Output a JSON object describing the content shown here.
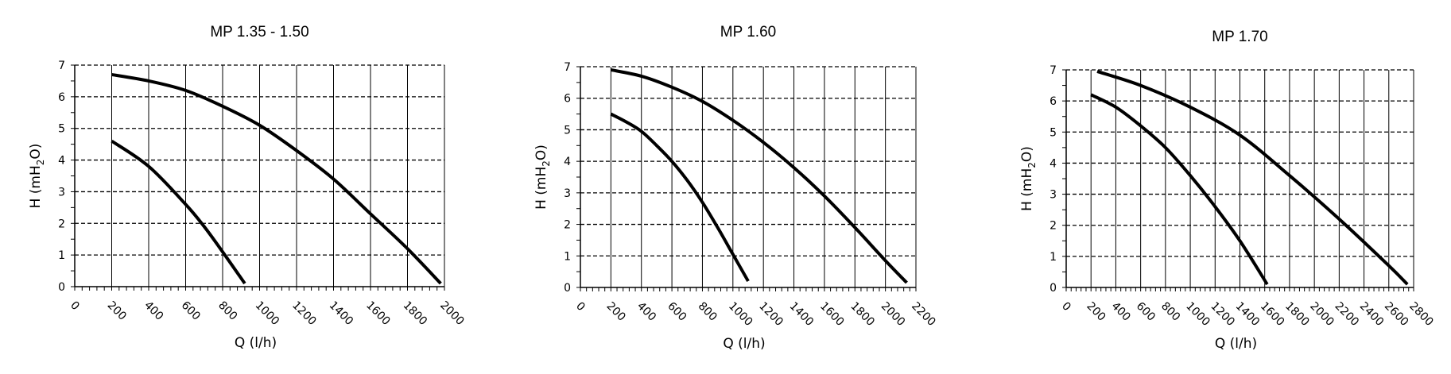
{
  "chart_data": [
    {
      "type": "line",
      "title": "MP 1.35 - 1.50",
      "xlabel": "Q (l/h)",
      "ylabel": {
        "main": "H (mH",
        "sub": "2",
        "end": "O)"
      },
      "xlim": [
        0,
        2000
      ],
      "ylim": [
        0,
        7
      ],
      "xticks": [
        0,
        200,
        400,
        600,
        800,
        1000,
        1200,
        1400,
        1600,
        1800,
        2000
      ],
      "yticks": [
        0,
        1,
        2,
        3,
        4,
        5,
        6,
        7
      ],
      "grid": true,
      "series": [
        {
          "x": [
            200,
            400,
            600,
            800,
            1000,
            1200,
            1400,
            1600,
            1800,
            1980
          ],
          "y": [
            6.7,
            6.5,
            6.2,
            5.7,
            5.1,
            4.3,
            3.4,
            2.3,
            1.2,
            0.1
          ]
        },
        {
          "x": [
            200,
            400,
            600,
            700,
            800,
            920
          ],
          "y": [
            4.6,
            3.8,
            2.6,
            1.9,
            1.1,
            0.1
          ]
        }
      ]
    },
    {
      "type": "line",
      "title": "MP 1.60",
      "xlabel": "Q (l/h)",
      "ylabel": {
        "main": "H (mH",
        "sub": "2",
        "end": "O)"
      },
      "xlim": [
        0,
        2200
      ],
      "ylim": [
        0,
        7
      ],
      "xticks": [
        0,
        200,
        400,
        600,
        800,
        1000,
        1200,
        1400,
        1600,
        1800,
        2000,
        2200
      ],
      "yticks": [
        0,
        1,
        2,
        3,
        4,
        5,
        6,
        7
      ],
      "grid": true,
      "series": [
        {
          "x": [
            200,
            400,
            600,
            800,
            1000,
            1200,
            1400,
            1600,
            1800,
            2000,
            2140
          ],
          "y": [
            6.9,
            6.7,
            6.35,
            5.9,
            5.3,
            4.6,
            3.8,
            2.9,
            1.9,
            0.85,
            0.15
          ]
        },
        {
          "x": [
            200,
            300,
            400,
            500,
            600,
            700,
            800,
            900,
            1000,
            1100
          ],
          "y": [
            5.5,
            5.25,
            4.95,
            4.5,
            4.0,
            3.4,
            2.7,
            1.9,
            1.05,
            0.2
          ]
        }
      ]
    },
    {
      "type": "line",
      "title": "MP 1.70",
      "xlabel": "Q (l/h)",
      "ylabel": {
        "main": "H (mH",
        "sub": "2",
        "end": "O)"
      },
      "xlim": [
        0,
        2800
      ],
      "ylim": [
        0,
        7
      ],
      "xticks": [
        0,
        200,
        400,
        600,
        800,
        1000,
        1200,
        1400,
        1600,
        1800,
        2000,
        2200,
        2400,
        2600,
        2800
      ],
      "yticks": [
        0,
        1,
        2,
        3,
        4,
        5,
        6,
        7
      ],
      "grid": true,
      "series": [
        {
          "x": [
            250,
            600,
            1000,
            1400,
            1800,
            2200,
            2600,
            2750
          ],
          "y": [
            6.95,
            6.5,
            5.8,
            4.9,
            3.6,
            2.2,
            0.7,
            0.1
          ]
        },
        {
          "x": [
            200,
            400,
            600,
            800,
            1000,
            1200,
            1400,
            1620
          ],
          "y": [
            6.2,
            5.8,
            5.2,
            4.5,
            3.6,
            2.6,
            1.5,
            0.1
          ]
        }
      ]
    }
  ]
}
